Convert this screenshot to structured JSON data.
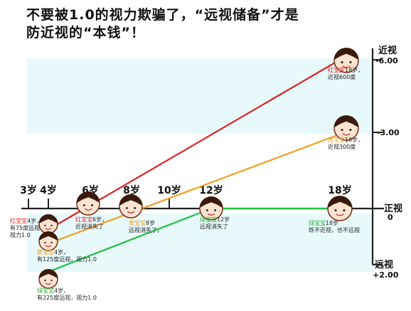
{
  "title": {
    "line1": "不要被1.0的视力欺骗了，“远视储备”才是",
    "line2": "防近视的“本钱”！"
  },
  "age_axis": {
    "ticks": [
      {
        "label": "3岁",
        "age": 3
      },
      {
        "label": "4岁",
        "age": 4
      },
      {
        "label": "6岁",
        "age": 6
      },
      {
        "label": "8岁",
        "age": 8
      },
      {
        "label": "10岁",
        "age": 10
      },
      {
        "label": "12岁",
        "age": 12
      },
      {
        "label": "18岁",
        "age": 18
      }
    ]
  },
  "diopter_axis": {
    "top_label": "近视",
    "top_value": "-6.00",
    "mid_value": "-3.00",
    "zero_label": "正视",
    "zero_value": "0",
    "bottom_label": "远视",
    "bottom_value": "+2.00"
  },
  "colors": {
    "red": "#e02020",
    "yellow": "#f0a020",
    "green": "#22c040",
    "axis": "#222222",
    "band": "#e7f9fb"
  },
  "lines": [
    {
      "name": "red",
      "from_age": 4,
      "from_diopter": 0.75,
      "to_age": 18,
      "to_diopter": -6.0
    },
    {
      "name": "yellow",
      "from_age": 4,
      "from_diopter": 1.25,
      "to_age": 18,
      "to_diopter": -3.0
    },
    {
      "name": "green",
      "from_age": 4,
      "from_diopter": 2.25,
      "to_age": 12,
      "to_diopter": 0,
      "continue_to_age": 18
    }
  ],
  "annotations": {
    "red4_name": "红宝宝",
    "red4_text": "4岁，",
    "red4_l2": "有75度远视",
    "red4_l3": "视力1.0",
    "red6_name": "红宝宝",
    "red6_text": "6岁，",
    "red6_l2": "近视消失了",
    "red18_name": "红宝宝",
    "red18_text": "18岁，",
    "red18_l2": "近视600度",
    "yel4_name": "黄宝宝",
    "yel4_text": "4岁，",
    "yel4_l2": "有125度远视，视力1.0",
    "yel8_name": "黄宝宝",
    "yel8_text": "8岁",
    "yel8_l2": "远视消失了。",
    "yel18_name": "黄宝宝",
    "yel18_text": "18岁，",
    "yel18_l2": "近视300度",
    "grn4_name": "绿宝宝",
    "grn4_text": "4岁，",
    "grn4_l2": "有225度远视，视力1.0",
    "grn12_name": "绿宝宝",
    "grn12_text": "12岁",
    "grn12_l2": "远视消失了",
    "grn18_name": "绿宝宝",
    "grn18_text": "18岁",
    "grn18_l2": "既不近视，也不远视"
  }
}
